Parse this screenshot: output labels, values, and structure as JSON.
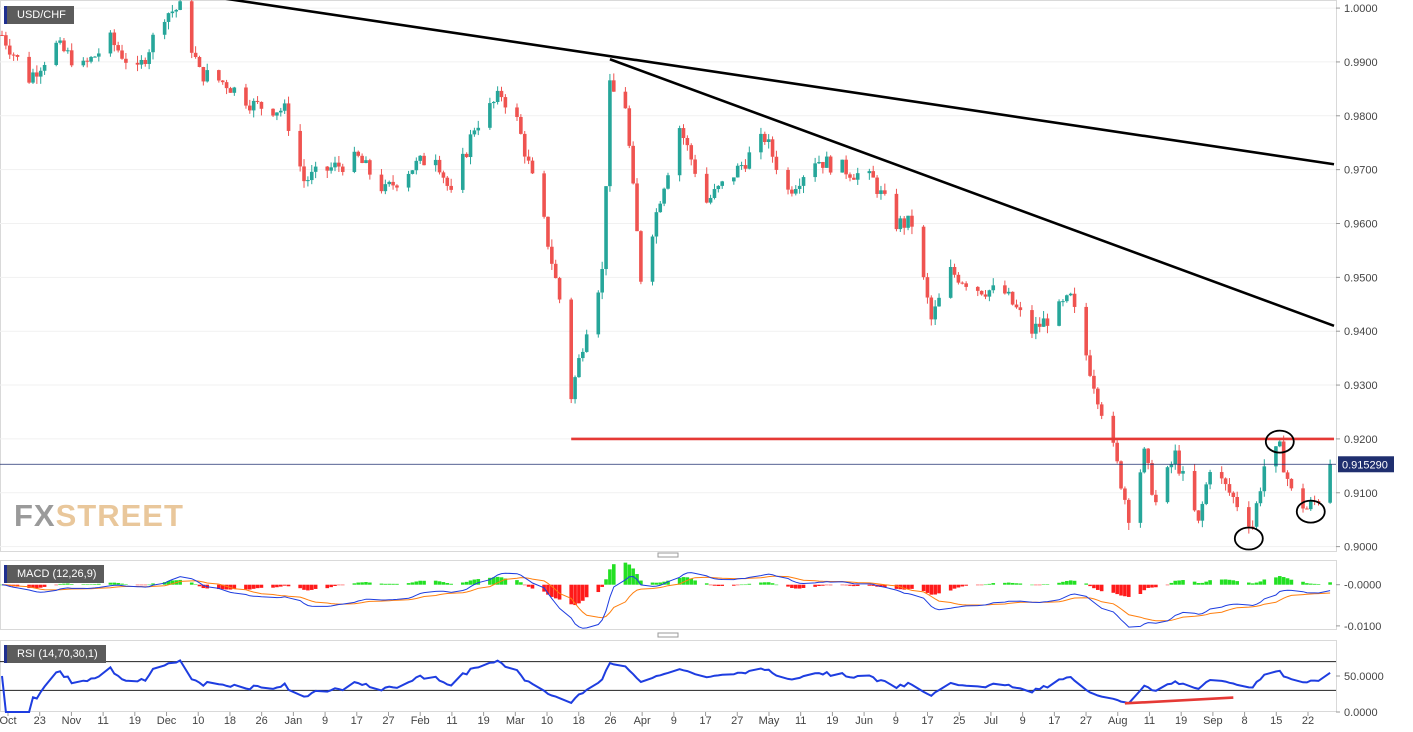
{
  "symbol": "USD/CHF",
  "brand": {
    "part1": "FX",
    "part2": "STREET"
  },
  "last_price_label": "0.915290",
  "colors": {
    "up": "#26a69a",
    "down": "#ef5350",
    "trendline": "#000000",
    "support": "#e53935",
    "macd_line": "#1e3de0",
    "signal_line": "#ff7f0e",
    "hist_pos": "#23e023",
    "hist_neg": "#ff1a1a",
    "rsi_line": "#1e3de0",
    "price_line": "#1f2f6f"
  },
  "chart_data": [
    {
      "type": "candlestick",
      "title": "USD/CHF",
      "y_ticks": [
        "1.0000",
        "0.9900",
        "0.9800",
        "0.9700",
        "0.9600",
        "0.9500",
        "0.9400",
        "0.9300",
        "0.9200",
        "0.9100",
        "0.9000"
      ],
      "ylim": [
        0.899,
        1.0015
      ],
      "x_ticks": [
        "Oct",
        "23",
        "Nov",
        "11",
        "19",
        "Dec",
        "10",
        "18",
        "26",
        "Jan",
        "9",
        "17",
        "27",
        "Feb",
        "11",
        "19",
        "Mar",
        "10",
        "18",
        "26",
        "Apr",
        "9",
        "17",
        "27",
        "May",
        "11",
        "19",
        "Jun",
        "9",
        "17",
        "25",
        "Jul",
        "9",
        "17",
        "27",
        "Aug",
        "11",
        "19",
        "Sep",
        "8",
        "15",
        "22"
      ],
      "x_range": [
        "2019-10-14",
        "2020-09-22"
      ],
      "last_price": 0.91529,
      "anchors": [
        {
          "date": "2019-10-14",
          "close": 0.995
        },
        {
          "date": "2019-10-21",
          "close": 0.987
        },
        {
          "date": "2019-10-28",
          "close": 0.993
        },
        {
          "date": "2019-11-04",
          "close": 0.989
        },
        {
          "date": "2019-11-11",
          "close": 0.994
        },
        {
          "date": "2019-11-18",
          "close": 0.988
        },
        {
          "date": "2019-11-25",
          "close": 0.999
        },
        {
          "date": "2019-11-29",
          "close": 1.0
        },
        {
          "date": "2019-12-04",
          "close": 0.988
        },
        {
          "date": "2019-12-11",
          "close": 0.986
        },
        {
          "date": "2019-12-18",
          "close": 0.982
        },
        {
          "date": "2019-12-26",
          "close": 0.981
        },
        {
          "date": "2019-12-31",
          "close": 0.968
        },
        {
          "date": "2020-01-06",
          "close": 0.97
        },
        {
          "date": "2020-01-14",
          "close": 0.972
        },
        {
          "date": "2020-01-21",
          "close": 0.966
        },
        {
          "date": "2020-01-27",
          "close": 0.97
        },
        {
          "date": "2020-02-03",
          "close": 0.973
        },
        {
          "date": "2020-02-07",
          "close": 0.965
        },
        {
          "date": "2020-02-13",
          "close": 0.978
        },
        {
          "date": "2020-02-20",
          "close": 0.984
        },
        {
          "date": "2020-02-24",
          "close": 0.979
        },
        {
          "date": "2020-03-02",
          "close": 0.96
        },
        {
          "date": "2020-03-06",
          "close": 0.946
        },
        {
          "date": "2020-03-09",
          "close": 0.928
        },
        {
          "date": "2020-03-13",
          "close": 0.941
        },
        {
          "date": "2020-03-17",
          "close": 0.951
        },
        {
          "date": "2020-03-19",
          "close": 0.985
        },
        {
          "date": "2020-03-23",
          "close": 0.982
        },
        {
          "date": "2020-03-27",
          "close": 0.95
        },
        {
          "date": "2020-04-01",
          "close": 0.965
        },
        {
          "date": "2020-04-06",
          "close": 0.978
        },
        {
          "date": "2020-04-13",
          "close": 0.964
        },
        {
          "date": "2020-04-21",
          "close": 0.97
        },
        {
          "date": "2020-04-28",
          "close": 0.976
        },
        {
          "date": "2020-05-04",
          "close": 0.966
        },
        {
          "date": "2020-05-11",
          "close": 0.972
        },
        {
          "date": "2020-05-19",
          "close": 0.97
        },
        {
          "date": "2020-05-26",
          "close": 0.968
        },
        {
          "date": "2020-06-01",
          "close": 0.96
        },
        {
          "date": "2020-06-05",
          "close": 0.96
        },
        {
          "date": "2020-06-10",
          "close": 0.942
        },
        {
          "date": "2020-06-15",
          "close": 0.951
        },
        {
          "date": "2020-06-22",
          "close": 0.948
        },
        {
          "date": "2020-06-29",
          "close": 0.947
        },
        {
          "date": "2020-07-06",
          "close": 0.94
        },
        {
          "date": "2020-07-13",
          "close": 0.944
        },
        {
          "date": "2020-07-16",
          "close": 0.946
        },
        {
          "date": "2020-07-21",
          "close": 0.933
        },
        {
          "date": "2020-07-27",
          "close": 0.918
        },
        {
          "date": "2020-07-31",
          "close": 0.906
        },
        {
          "date": "2020-08-04",
          "close": 0.917
        },
        {
          "date": "2020-08-07",
          "close": 0.908
        },
        {
          "date": "2020-08-12",
          "close": 0.917
        },
        {
          "date": "2020-08-18",
          "close": 0.904
        },
        {
          "date": "2020-08-21",
          "close": 0.915
        },
        {
          "date": "2020-08-27",
          "close": 0.909
        },
        {
          "date": "2020-09-01",
          "close": 0.904
        },
        {
          "date": "2020-09-04",
          "close": 0.915
        },
        {
          "date": "2020-09-08",
          "close": 0.918
        },
        {
          "date": "2020-09-11",
          "close": 0.91
        },
        {
          "date": "2020-09-15",
          "close": 0.907
        },
        {
          "date": "2020-09-18",
          "close": 0.909
        },
        {
          "date": "2020-09-21",
          "close": 0.9153
        }
      ],
      "annotations": {
        "trendlines": [
          {
            "from": {
              "date": "2019-11-29",
              "price": 1.003
            },
            "to": {
              "date": "2020-09-22",
              "price": 0.971
            }
          },
          {
            "from": {
              "date": "2020-03-19",
              "price": 0.9905
            },
            "to": {
              "date": "2020-09-22",
              "price": 0.941
            }
          }
        ],
        "support": {
          "from_date": "2020-03-09",
          "to_date": "2020-09-22",
          "price": 0.92
        },
        "circles": [
          {
            "date": "2020-09-08",
            "price": 0.9195
          },
          {
            "date": "2020-08-31",
            "price": 0.9015
          },
          {
            "date": "2020-09-16",
            "price": 0.9065
          }
        ]
      }
    },
    {
      "type": "line",
      "title": "MACD (12,26,9)",
      "y_ticks": [
        "-0.0000",
        "-0.0100"
      ],
      "ylim": [
        -0.011,
        0.006
      ],
      "series": [
        {
          "name": "MACD"
        },
        {
          "name": "Signal"
        },
        {
          "name": "Histogram"
        }
      ]
    },
    {
      "type": "line",
      "title": "RSI (14,70,30,1)",
      "y_ticks": [
        "50.0000",
        "0.0000"
      ],
      "ylim": [
        0,
        100
      ],
      "levels": [
        70,
        30
      ],
      "series": [
        {
          "name": "RSI"
        }
      ],
      "divergence_line": {
        "from": {
          "date": "2020-07-30",
          "value": 12
        },
        "to": {
          "date": "2020-08-27",
          "value": 20
        }
      }
    }
  ]
}
